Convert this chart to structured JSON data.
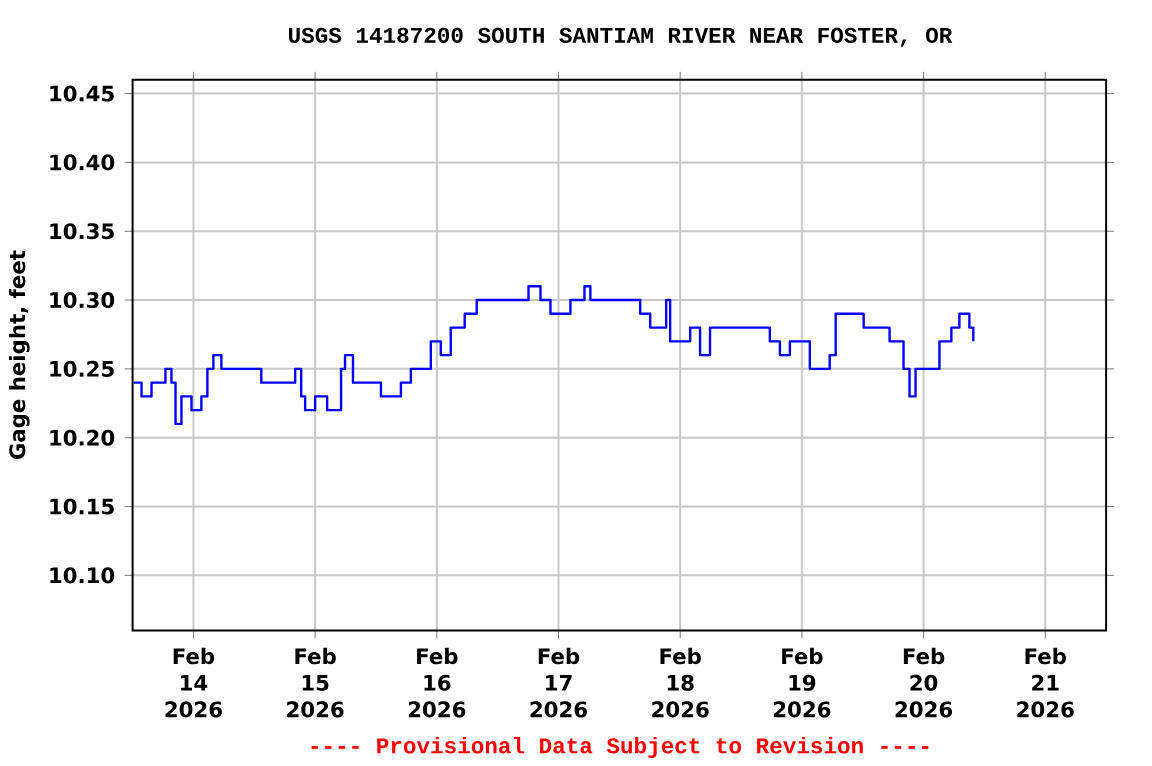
{
  "chart_data": {
    "type": "step",
    "title": "USGS 14187200 SOUTH SANTIAM RIVER NEAR FOSTER, OR",
    "ylabel": "Gage height, feet",
    "annotations": [
      "---- Provisional Data Subject to Revision ----"
    ],
    "x": [
      "2026-02-13T12:12",
      "2026-02-13T13:46",
      "2026-02-13T15:44",
      "2026-02-13T17:43",
      "2026-02-13T18:29",
      "2026-02-13T19:40",
      "2026-02-13T20:28",
      "2026-02-13T21:38",
      "2026-02-13T23:37",
      "2026-02-14T01:34",
      "2026-02-14T02:45",
      "2026-02-14T03:56",
      "2026-02-14T05:31",
      "2026-02-14T11:25",
      "2026-02-14T13:23",
      "2026-02-14T19:17",
      "2026-02-14T20:04",
      "2026-02-14T21:15",
      "2026-02-14T22:02",
      "2026-02-15T00:00",
      "2026-02-15T02:22",
      "2026-02-15T05:07",
      "2026-02-15T05:54",
      "2026-02-15T07:28",
      "2026-02-15T11:01",
      "2026-02-15T12:59",
      "2026-02-15T16:55",
      "2026-02-15T18:53",
      "2026-02-15T21:38",
      "2026-02-15T22:49",
      "2026-02-16T00:47",
      "2026-02-16T02:45",
      "2026-02-16T05:30",
      "2026-02-16T07:52",
      "2026-02-16T12:35",
      "2026-02-16T18:05",
      "2026-02-16T20:27",
      "2026-02-16T22:25",
      "2026-02-17T00:23",
      "2026-02-17T02:21",
      "2026-02-17T05:07",
      "2026-02-17T06:17",
      "2026-02-17T12:11",
      "2026-02-17T16:07",
      "2026-02-17T18:05",
      "2026-02-17T20:04",
      "2026-02-17T21:14",
      "2026-02-17T22:01",
      "2026-02-18T01:58",
      "2026-02-18T03:55",
      "2026-02-18T05:53",
      "2026-02-18T11:47",
      "2026-02-18T17:41",
      "2026-02-18T19:40",
      "2026-02-18T21:38",
      "2026-02-19T01:34",
      "2026-02-19T05:29",
      "2026-02-19T06:40",
      "2026-02-19T09:26",
      "2026-02-19T12:11",
      "2026-02-19T17:18",
      "2026-02-19T20:03",
      "2026-02-19T21:14",
      "2026-02-19T22:25",
      "2026-02-20T01:10",
      "2026-02-20T03:08",
      "2026-02-20T05:29",
      "2026-02-20T07:04",
      "2026-02-20T09:02",
      "2026-02-20T09:49"
    ],
    "values": [
      10.24,
      10.23,
      10.24,
      10.24,
      10.25,
      10.24,
      10.21,
      10.23,
      10.22,
      10.23,
      10.25,
      10.26,
      10.25,
      10.25,
      10.24,
      10.24,
      10.25,
      10.23,
      10.22,
      10.23,
      10.22,
      10.25,
      10.26,
      10.24,
      10.24,
      10.23,
      10.24,
      10.25,
      10.25,
      10.27,
      10.26,
      10.28,
      10.29,
      10.3,
      10.3,
      10.31,
      10.3,
      10.29,
      10.29,
      10.3,
      10.31,
      10.3,
      10.3,
      10.29,
      10.28,
      10.28,
      10.3,
      10.27,
      10.28,
      10.26,
      10.28,
      10.28,
      10.27,
      10.26,
      10.27,
      10.25,
      10.26,
      10.29,
      10.29,
      10.28,
      10.27,
      10.25,
      10.23,
      10.25,
      10.25,
      10.27,
      10.28,
      10.29,
      10.28,
      10.27
    ],
    "color": "#0000ff",
    "xlim": [
      "2026-02-13T12:00",
      "2026-02-21T12:00"
    ],
    "xticks": [
      {
        "value": "2026-02-14",
        "label": "Feb 14 2026"
      },
      {
        "value": "2026-02-15",
        "label": "Feb 15 2026"
      },
      {
        "value": "2026-02-16",
        "label": "Feb 16 2026"
      },
      {
        "value": "2026-02-17",
        "label": "Feb 17 2026"
      },
      {
        "value": "2026-02-18",
        "label": "Feb 18 2026"
      },
      {
        "value": "2026-02-19",
        "label": "Feb 19 2026"
      },
      {
        "value": "2026-02-20",
        "label": "Feb 20 2026"
      },
      {
        "value": "2026-02-21",
        "label": "Feb 21 2026"
      }
    ],
    "ylim": [
      10.06,
      10.46
    ],
    "yticks": [
      {
        "value": 10.1,
        "label": "10.10"
      },
      {
        "value": 10.15,
        "label": "10.15"
      },
      {
        "value": 10.2,
        "label": "10.20"
      },
      {
        "value": 10.25,
        "label": "10.25"
      },
      {
        "value": 10.3,
        "label": "10.30"
      },
      {
        "value": 10.35,
        "label": "10.35"
      },
      {
        "value": 10.4,
        "label": "10.40"
      },
      {
        "value": 10.45,
        "label": "10.45"
      }
    ],
    "grid": true
  }
}
